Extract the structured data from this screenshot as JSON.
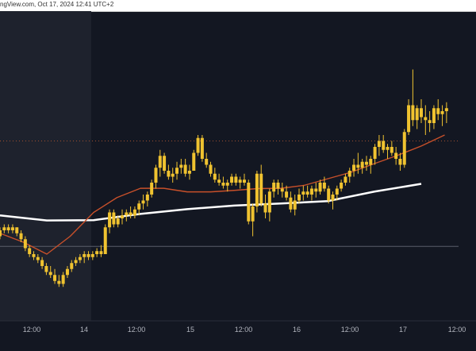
{
  "header": {
    "text": "ngView.com, Oct 17, 2024 12:41 UTC+2"
  },
  "chart_data": {
    "type": "candlestick",
    "title": "",
    "xlabel": "",
    "ylabel": "",
    "x_ticks": [
      "12:00",
      "14",
      "12:00",
      "15",
      "12:00",
      "16",
      "12:00",
      "17",
      "12:00"
    ],
    "ylim": [
      0,
      100
    ],
    "colors": {
      "background": "#131722",
      "shaded_region": "#1e222d",
      "candle": "#f0c330",
      "ma_fast": "#c8502a",
      "ma_slow": "#ffffff",
      "level_line": "#5a5f6a",
      "dotted_line": "#a05030"
    },
    "horizontal_levels": [
      {
        "value": 58.0,
        "style": "dotted"
      },
      {
        "value": 22.6,
        "style": "solid"
      }
    ],
    "series": [
      {
        "name": "",
        "kind": "ma_slow",
        "x": [
          0,
          10,
          20,
          30,
          40,
          50,
          60,
          70,
          80,
          90
        ],
        "y": [
          33,
          31.3,
          31.4,
          33.5,
          35.1,
          36.3,
          37.0,
          37.8,
          41.0,
          43.6
        ]
      },
      {
        "name": "",
        "kind": "ma_fast",
        "x": [
          0,
          5,
          10,
          15,
          20,
          25,
          30,
          35,
          40,
          45,
          50,
          55,
          60,
          65,
          70,
          75,
          80,
          85,
          90,
          95
        ],
        "y": [
          27,
          24,
          20,
          26,
          34,
          39,
          42.1,
          42.1,
          40.9,
          40.9,
          41.4,
          42.0,
          42.1,
          43.1,
          45.3,
          47.5,
          50.4,
          53.2,
          56.3,
          60.0
        ]
      }
    ],
    "candles": [
      [
        0,
        26,
        29,
        25,
        28
      ],
      [
        0.9,
        28,
        30,
        27,
        29
      ],
      [
        1.8,
        29,
        30,
        27,
        28
      ],
      [
        2.7,
        28,
        30,
        27,
        29
      ],
      [
        3.6,
        29,
        29,
        26,
        27
      ],
      [
        4.5,
        27,
        28,
        24,
        25
      ],
      [
        5.4,
        25,
        26,
        21,
        22
      ],
      [
        6.3,
        22,
        23,
        19,
        20
      ],
      [
        7.2,
        20,
        21,
        18,
        19
      ],
      [
        8.1,
        19,
        20,
        17,
        18
      ],
      [
        9.0,
        18,
        19,
        15,
        16
      ],
      [
        9.9,
        16,
        17,
        13,
        14
      ],
      [
        10.8,
        14,
        16,
        12,
        13
      ],
      [
        11.7,
        13,
        15,
        10,
        11
      ],
      [
        12.6,
        11,
        13,
        9,
        10
      ],
      [
        13.5,
        10,
        14,
        9,
        13
      ],
      [
        14.4,
        13,
        16,
        12,
        15
      ],
      [
        15.3,
        15,
        18,
        14,
        17
      ],
      [
        16.2,
        17,
        19,
        16,
        18
      ],
      [
        17.1,
        18,
        20,
        17,
        19
      ],
      [
        18.0,
        19,
        21,
        17,
        20
      ],
      [
        18.9,
        20,
        21,
        18,
        19
      ],
      [
        19.8,
        19,
        21,
        18,
        20
      ],
      [
        20.7,
        20,
        22,
        19,
        21
      ],
      [
        21.6,
        21,
        23,
        19,
        20
      ],
      [
        22.5,
        20,
        30,
        20,
        29
      ],
      [
        23.4,
        29,
        35,
        27,
        34
      ],
      [
        24.3,
        34,
        35,
        29,
        30
      ],
      [
        25.2,
        30,
        33,
        29,
        32
      ],
      [
        26.1,
        32,
        35,
        30,
        33
      ],
      [
        27.0,
        33,
        35,
        31,
        34
      ],
      [
        27.9,
        34,
        36,
        32,
        33
      ],
      [
        28.8,
        33,
        36,
        32,
        35
      ],
      [
        29.7,
        35,
        38,
        33,
        37
      ],
      [
        30.6,
        37,
        40,
        35,
        38
      ],
      [
        31.5,
        38,
        41,
        36,
        40
      ],
      [
        32.4,
        40,
        45,
        39,
        44
      ],
      [
        33.3,
        44,
        50,
        42,
        49
      ],
      [
        34.2,
        49,
        55,
        46,
        53
      ],
      [
        35.1,
        53,
        54,
        47,
        48
      ],
      [
        36.0,
        48,
        50,
        45,
        46
      ],
      [
        36.9,
        46,
        49,
        44,
        47
      ],
      [
        37.8,
        47,
        51,
        45,
        49
      ],
      [
        38.7,
        49,
        52,
        47,
        50
      ],
      [
        39.6,
        50,
        52,
        46,
        47
      ],
      [
        40.5,
        47,
        50,
        45,
        48
      ],
      [
        41.4,
        48,
        55,
        48,
        54
      ],
      [
        42.3,
        54,
        60,
        53,
        59
      ],
      [
        43.2,
        59,
        60,
        51,
        52
      ],
      [
        44.1,
        52,
        54,
        49,
        50
      ],
      [
        45.0,
        50,
        51,
        46,
        47
      ],
      [
        45.9,
        47,
        49,
        44,
        45
      ],
      [
        46.8,
        45,
        47,
        43,
        44
      ],
      [
        47.7,
        44,
        46,
        42,
        43
      ],
      [
        48.6,
        43,
        45,
        41,
        44
      ],
      [
        49.5,
        44,
        47,
        43,
        46
      ],
      [
        50.4,
        46,
        47,
        43,
        44
      ],
      [
        51.3,
        44,
        46,
        42,
        45
      ],
      [
        52.2,
        45,
        47,
        43,
        44
      ],
      [
        53.1,
        44,
        45,
        30,
        31
      ],
      [
        54.0,
        31,
        37,
        26,
        36
      ],
      [
        54.9,
        36,
        48,
        34,
        47
      ],
      [
        55.8,
        47,
        50,
        36,
        37
      ],
      [
        56.7,
        37,
        40,
        32,
        34
      ],
      [
        57.6,
        34,
        42,
        31,
        41
      ],
      [
        58.5,
        41,
        45,
        39,
        44
      ],
      [
        59.4,
        44,
        45,
        40,
        42
      ],
      [
        60.3,
        42,
        44,
        39,
        41
      ],
      [
        61.2,
        41,
        43,
        38,
        39
      ],
      [
        62.1,
        39,
        41,
        34,
        35
      ],
      [
        63.0,
        35,
        40,
        33,
        38
      ],
      [
        63.9,
        38,
        42,
        37,
        40
      ],
      [
        64.8,
        40,
        43,
        38,
        41
      ],
      [
        65.7,
        41,
        43,
        39,
        40
      ],
      [
        66.6,
        40,
        43,
        38,
        42
      ],
      [
        67.5,
        42,
        44,
        39,
        41
      ],
      [
        68.4,
        41,
        45,
        40,
        44
      ],
      [
        69.3,
        44,
        46,
        41,
        42
      ],
      [
        70.2,
        42,
        43,
        37,
        38
      ],
      [
        71.1,
        38,
        41,
        35,
        40
      ],
      [
        72.0,
        40,
        43,
        38,
        42
      ],
      [
        72.9,
        42,
        45,
        41,
        44
      ],
      [
        73.8,
        44,
        47,
        43,
        46
      ],
      [
        74.7,
        46,
        49,
        44,
        48
      ],
      [
        75.6,
        48,
        52,
        46,
        50
      ],
      [
        76.5,
        50,
        54,
        47,
        49
      ],
      [
        77.4,
        49,
        52,
        47,
        51
      ],
      [
        78.3,
        51,
        53,
        48,
        50
      ],
      [
        79.2,
        50,
        53,
        47,
        52
      ],
      [
        80.1,
        52,
        57,
        50,
        56
      ],
      [
        81.0,
        56,
        60,
        53,
        58
      ],
      [
        81.9,
        58,
        60,
        54,
        55
      ],
      [
        82.8,
        55,
        57,
        52,
        56
      ],
      [
        83.7,
        56,
        58,
        53,
        54
      ],
      [
        84.6,
        54,
        56,
        50,
        52
      ],
      [
        85.5,
        52,
        54,
        48,
        50
      ],
      [
        86.4,
        50,
        62,
        49,
        61
      ],
      [
        87.3,
        61,
        72,
        60,
        70
      ],
      [
        88.2,
        70,
        82,
        63,
        65
      ],
      [
        89.1,
        65,
        70,
        62,
        69
      ],
      [
        90.0,
        69,
        72,
        64,
        66
      ],
      [
        90.9,
        66,
        70,
        60,
        65
      ],
      [
        91.8,
        65,
        68,
        61,
        64
      ],
      [
        92.7,
        64,
        70,
        62,
        69
      ],
      [
        93.6,
        69,
        72,
        65,
        67
      ],
      [
        94.5,
        67,
        70,
        63,
        68
      ],
      [
        95.4,
        68,
        71,
        64,
        69
      ]
    ]
  }
}
